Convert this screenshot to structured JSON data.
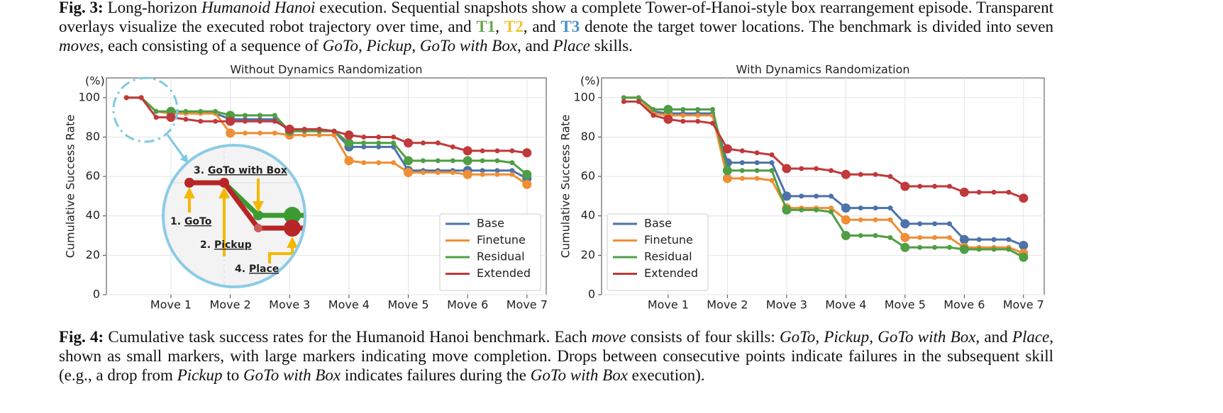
{
  "caption_top": {
    "segments": [
      {
        "text": "Fig. 3:",
        "style": "bold"
      },
      {
        "text": " Long-horizon "
      },
      {
        "text": "Humanoid Hanoi",
        "style": "italic"
      },
      {
        "text": " execution. Sequential snapshots show a complete Tower-of-Hanoi-style box rearrangement episode. Transparent overlays visualize the executed robot trajectory over time, and "
      },
      {
        "text": "T1",
        "style": "bold",
        "color": "#6aa84f"
      },
      {
        "text": ", "
      },
      {
        "text": "T2",
        "style": "bold",
        "color": "#f1c232"
      },
      {
        "text": ", and "
      },
      {
        "text": "T3",
        "style": "bold",
        "color": "#4a90c8"
      },
      {
        "text": " denote the target tower locations. The benchmark is divided into seven "
      },
      {
        "text": "moves",
        "style": "italic"
      },
      {
        "text": ", each consisting of a sequence of "
      },
      {
        "text": "GoTo",
        "style": "italic"
      },
      {
        "text": ", "
      },
      {
        "text": "Pickup",
        "style": "italic"
      },
      {
        "text": ", "
      },
      {
        "text": "GoTo with Box",
        "style": "italic"
      },
      {
        "text": ", and "
      },
      {
        "text": "Place",
        "style": "italic"
      },
      {
        "text": " skills."
      }
    ]
  },
  "chart_data": [
    {
      "type": "line",
      "title": "Without Dynamics Randomization",
      "y_label": "Cumulative Success Rate",
      "y_unit": "(%)",
      "x": [
        0,
        1,
        2,
        3,
        4,
        5,
        6,
        7,
        8,
        9,
        10,
        11,
        12,
        13,
        14,
        15,
        16,
        17,
        18,
        19,
        20,
        21,
        22,
        23,
        24,
        25,
        26,
        27
      ],
      "xlim": [
        -1.35,
        28.3
      ],
      "xticks": [
        {
          "value": 3,
          "label": "Move 1"
        },
        {
          "value": 7,
          "label": "Move 2"
        },
        {
          "value": 11,
          "label": "Move 3"
        },
        {
          "value": 15,
          "label": "Move 4"
        },
        {
          "value": 19,
          "label": "Move 5"
        },
        {
          "value": 23,
          "label": "Move 6"
        },
        {
          "value": 27,
          "label": "Move 7"
        }
      ],
      "ylim": [
        0,
        110
      ],
      "yticks": [
        0,
        20,
        40,
        60,
        80,
        100
      ],
      "grid": true,
      "legend": "lower right",
      "series": [
        {
          "name": "Base",
          "color": "#4c72a8",
          "values": [
            100,
            100,
            93,
            92,
            92,
            92,
            92,
            89,
            89,
            89,
            89,
            83,
            83,
            83,
            83,
            75,
            75,
            75,
            75,
            63,
            63,
            63,
            63,
            63,
            63,
            63,
            63,
            59
          ]
        },
        {
          "name": "Finetune",
          "color": "#ef8e34",
          "values": [
            100,
            100,
            93,
            92,
            92,
            92,
            92,
            82,
            82,
            82,
            82,
            81,
            81,
            81,
            81,
            68,
            67,
            67,
            67,
            62,
            62,
            62,
            62,
            61,
            61,
            61,
            61,
            56
          ]
        },
        {
          "name": "Residual",
          "color": "#4f9e44",
          "values": [
            100,
            100,
            93,
            93,
            93,
            93,
            93,
            91,
            91,
            91,
            91,
            83,
            83,
            83,
            83,
            77,
            77,
            77,
            77,
            68,
            68,
            68,
            68,
            68,
            68,
            68,
            67,
            61
          ]
        },
        {
          "name": "Extended",
          "color": "#c0393b",
          "values": [
            100,
            100,
            90,
            90,
            89,
            88,
            88,
            88,
            88,
            88,
            88,
            84,
            84,
            84,
            83,
            81,
            80,
            80,
            80,
            77,
            77,
            77,
            75,
            73,
            73,
            73,
            73,
            72
          ]
        }
      ],
      "annotations": [
        {
          "number": "1.",
          "label": "GoTo"
        },
        {
          "number": "2.",
          "label": "Pickup"
        },
        {
          "number": "3.",
          "label": "GoTo with Box"
        },
        {
          "number": "4.",
          "label": "Place"
        }
      ]
    },
    {
      "type": "line",
      "title": "With Dynamics Randomization",
      "y_label": "Cumulative Success Rate",
      "y_unit": "(%)",
      "x": [
        0,
        1,
        2,
        3,
        4,
        5,
        6,
        7,
        8,
        9,
        10,
        11,
        12,
        13,
        14,
        15,
        16,
        17,
        18,
        19,
        20,
        21,
        22,
        23,
        24,
        25,
        26,
        27
      ],
      "xlim": [
        -1.5,
        28.4
      ],
      "xticks": [
        {
          "value": 3,
          "label": "Move 1"
        },
        {
          "value": 7,
          "label": "Move 2"
        },
        {
          "value": 11,
          "label": "Move 3"
        },
        {
          "value": 15,
          "label": "Move 4"
        },
        {
          "value": 19,
          "label": "Move 5"
        },
        {
          "value": 23,
          "label": "Move 6"
        },
        {
          "value": 27,
          "label": "Move 7"
        }
      ],
      "ylim": [
        0,
        110
      ],
      "yticks": [
        0,
        20,
        40,
        60,
        80,
        100
      ],
      "grid": true,
      "legend": "lower left",
      "series": [
        {
          "name": "Base",
          "color": "#4c72a8",
          "values": [
            100,
            100,
            93,
            92,
            92,
            92,
            92,
            67,
            67,
            67,
            67,
            50,
            50,
            50,
            50,
            44,
            44,
            44,
            44,
            36,
            36,
            36,
            36,
            28,
            28,
            28,
            28,
            25
          ]
        },
        {
          "name": "Finetune",
          "color": "#ef8e34",
          "values": [
            100,
            100,
            92,
            91,
            91,
            91,
            91,
            59,
            59,
            59,
            58,
            44,
            44,
            44,
            44,
            38,
            38,
            38,
            38,
            29,
            29,
            29,
            29,
            24,
            24,
            24,
            24,
            21
          ]
        },
        {
          "name": "Residual",
          "color": "#4f9e44",
          "values": [
            100,
            100,
            94,
            94,
            94,
            94,
            94,
            63,
            63,
            63,
            63,
            43,
            43,
            43,
            42,
            30,
            30,
            30,
            29,
            24,
            24,
            24,
            24,
            23,
            23,
            23,
            23,
            19
          ]
        },
        {
          "name": "Extended",
          "color": "#c0393b",
          "values": [
            98,
            98,
            91,
            89,
            88,
            88,
            87,
            74,
            73,
            72,
            71,
            64,
            64,
            64,
            63,
            61,
            61,
            61,
            60,
            55,
            55,
            55,
            55,
            52,
            52,
            52,
            52,
            49
          ]
        }
      ]
    }
  ],
  "caption_bottom": {
    "segments": [
      {
        "text": "Fig. 4:",
        "style": "bold"
      },
      {
        "text": " Cumulative task success rates for the Humanoid Hanoi benchmark. Each "
      },
      {
        "text": "move",
        "style": "italic"
      },
      {
        "text": " consists of four skills: "
      },
      {
        "text": "GoTo",
        "style": "italic"
      },
      {
        "text": ", "
      },
      {
        "text": "Pickup",
        "style": "italic"
      },
      {
        "text": ", "
      },
      {
        "text": "GoTo with Box",
        "style": "italic"
      },
      {
        "text": ", and "
      },
      {
        "text": "Place",
        "style": "italic"
      },
      {
        "text": ", shown as small markers, with large markers indicating move completion. Drops between consecutive points indicate failures in the subsequent skill (e.g., a drop from "
      },
      {
        "text": "Pickup",
        "style": "italic"
      },
      {
        "text": " to "
      },
      {
        "text": "GoTo with Box",
        "style": "italic"
      },
      {
        "text": " indicates failures during the "
      },
      {
        "text": "GoTo with Box",
        "style": "italic"
      },
      {
        "text": " execution)."
      }
    ]
  }
}
